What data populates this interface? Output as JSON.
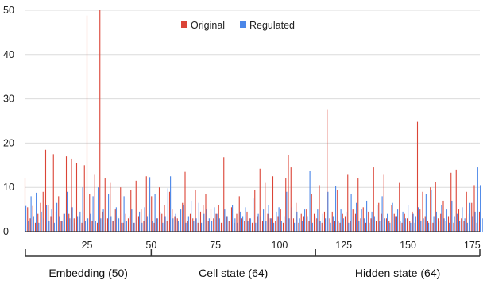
{
  "chart_data": {
    "type": "bar",
    "title": "",
    "xlabel": "",
    "ylabel": "",
    "ylim": [
      0,
      50
    ],
    "xlim": [
      1,
      178
    ],
    "y_ticks": [
      0,
      10,
      20,
      30,
      40,
      50
    ],
    "x_ticks": [
      25,
      50,
      75,
      100,
      125,
      150,
      175
    ],
    "grid": "horizontal",
    "legend_position": "top-center",
    "series": [
      {
        "name": "Original",
        "color": "#db4437",
        "values": [
          12.0,
          5.5,
          3.0,
          5.8,
          2.0,
          4.0,
          6.5,
          9.0,
          18.5,
          6.0,
          3.5,
          17.5,
          4.5,
          8.0,
          2.5,
          4.0,
          17.0,
          4.0,
          16.5,
          3.0,
          15.5,
          3.5,
          2.0,
          15.0,
          48.8,
          8.5,
          2.5,
          13.0,
          2.0,
          50.0,
          4.5,
          12.0,
          3.0,
          11.0,
          2.5,
          5.0,
          3.5,
          10.0,
          2.0,
          4.0,
          3.0,
          9.5,
          2.0,
          11.5,
          3.5,
          5.0,
          2.5,
          12.5,
          4.0,
          8.0,
          2.0,
          3.0,
          10.0,
          4.0,
          6.0,
          2.5,
          9.0,
          5.0,
          3.5,
          3.0,
          2.0,
          6.5,
          13.5,
          2.5,
          4.0,
          3.0,
          9.5,
          2.0,
          4.5,
          6.0,
          8.5,
          2.5,
          5.0,
          3.0,
          4.0,
          6.0,
          2.0,
          16.8,
          3.5,
          2.5,
          5.5,
          2.0,
          4.0,
          8.0,
          3.0,
          2.5,
          4.5,
          3.0,
          2.0,
          9.5,
          3.5,
          14.2,
          2.5,
          11.0,
          4.0,
          3.0,
          12.5,
          2.5,
          3.5,
          5.0,
          2.0,
          12.0,
          17.3,
          14.5,
          3.0,
          6.5,
          2.0,
          4.0,
          3.5,
          5.0,
          2.5,
          8.5,
          4.0,
          3.0,
          10.5,
          2.0,
          4.5,
          27.5,
          3.0,
          4.5,
          2.5,
          9.5,
          2.0,
          4.0,
          3.5,
          13.0,
          2.5,
          5.0,
          4.0,
          12.0,
          3.0,
          5.5,
          2.0,
          4.5,
          3.0,
          14.5,
          2.5,
          6.5,
          4.0,
          13.0,
          3.0,
          2.5,
          6.0,
          4.0,
          3.5,
          11.0,
          2.0,
          4.0,
          3.0,
          2.5,
          4.5,
          2.0,
          24.8,
          5.0,
          9.0,
          3.5,
          2.5,
          10.0,
          2.0,
          11.2,
          3.0,
          4.0,
          7.0,
          2.5,
          3.5,
          13.3,
          2.0,
          14.0,
          5.0,
          3.0,
          2.5,
          9.0,
          4.0,
          6.5,
          10.5,
          2.0,
          4.5
        ],
        "data_labels": []
      },
      {
        "name": "Regulated",
        "color": "#4a86e8",
        "values": [
          5.8,
          2.5,
          8.0,
          3.5,
          8.8,
          2.0,
          4.5,
          3.0,
          6.0,
          2.5,
          5.0,
          2.0,
          6.5,
          3.5,
          2.5,
          4.0,
          9.0,
          3.0,
          5.5,
          2.0,
          3.5,
          4.5,
          10.0,
          2.5,
          3.0,
          4.0,
          8.0,
          2.5,
          10.0,
          3.0,
          5.0,
          2.0,
          8.5,
          3.5,
          2.5,
          5.5,
          3.0,
          2.0,
          8.0,
          2.5,
          3.5,
          5.0,
          2.0,
          3.0,
          4.5,
          2.0,
          5.5,
          3.5,
          12.3,
          2.5,
          8.5,
          3.0,
          4.5,
          2.0,
          3.5,
          9.8,
          12.5,
          3.0,
          4.0,
          2.5,
          5.0,
          6.0,
          2.0,
          3.5,
          7.0,
          2.5,
          3.0,
          6.5,
          2.0,
          4.0,
          5.0,
          3.0,
          2.5,
          5.5,
          4.0,
          3.0,
          2.0,
          5.0,
          3.5,
          2.5,
          6.0,
          3.0,
          2.0,
          4.5,
          3.5,
          5.5,
          2.5,
          3.0,
          7.5,
          2.0,
          4.0,
          3.5,
          5.0,
          2.5,
          6.0,
          3.0,
          2.0,
          4.5,
          5.5,
          2.5,
          3.5,
          9.0,
          3.0,
          5.5,
          2.0,
          4.5,
          3.0,
          2.5,
          5.0,
          3.5,
          13.8,
          2.0,
          3.5,
          5.0,
          2.5,
          4.0,
          3.0,
          9.0,
          2.0,
          3.5,
          10.3,
          2.5,
          5.0,
          3.0,
          4.5,
          2.0,
          8.5,
          3.5,
          6.5,
          2.5,
          5.0,
          3.0,
          7.0,
          2.0,
          4.5,
          3.5,
          6.0,
          2.5,
          8.0,
          3.0,
          4.0,
          2.0,
          6.5,
          3.5,
          5.0,
          2.5,
          4.5,
          3.0,
          6.0,
          2.0,
          4.0,
          3.5,
          5.5,
          2.5,
          3.0,
          8.5,
          2.0,
          9.5,
          3.5,
          4.5,
          2.5,
          6.0,
          3.0,
          5.0,
          2.0,
          7.0,
          3.5,
          4.0,
          2.5,
          5.5,
          3.0,
          2.0,
          6.5,
          3.5,
          4.5,
          14.5,
          10.5,
          3.0
        ],
        "data_labels": []
      }
    ],
    "groups": [
      {
        "label": "Embedding (50)",
        "start": 1,
        "end": 50
      },
      {
        "label": "Cell state (64)",
        "start": 50,
        "end": 114
      },
      {
        "label": "Hidden state (64)",
        "start": 114,
        "end": 178
      }
    ]
  }
}
